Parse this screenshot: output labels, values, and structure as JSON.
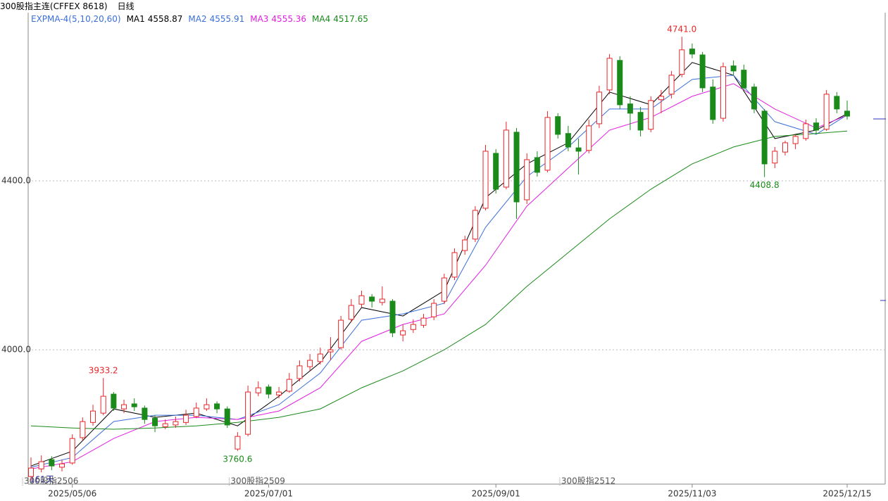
{
  "chart_data": {
    "type": "candlestick",
    "symbol": "300股指主连(CFFEX 8618)",
    "period": "日线",
    "indicator": "EXPMA-4(5,10,20,60)",
    "bar_count": "161天",
    "ylim": [
      3682,
      4798
    ],
    "yticks": [
      {
        "value": 4000,
        "label": "4000.0"
      },
      {
        "value": 4400,
        "label": "4400.0"
      }
    ],
    "grid": true,
    "up_color": "#e8262a",
    "down_color": "#1a8a1a",
    "categories": [
      null,
      null,
      null,
      null,
      "2025/05/06",
      null,
      null,
      null,
      null,
      null,
      null,
      null,
      null,
      null,
      null,
      null,
      null,
      null,
      null,
      null,
      null,
      null,
      null,
      "2025/07/01",
      null,
      null,
      null,
      null,
      null,
      null,
      null,
      null,
      null,
      null,
      null,
      null,
      null,
      null,
      null,
      null,
      null,
      null,
      null,
      null,
      null,
      "2025/09/01",
      null,
      null,
      null,
      null,
      null,
      null,
      null,
      null,
      null,
      null,
      null,
      null,
      null,
      null,
      null,
      null,
      null,
      null,
      "2025/11/03",
      null,
      null,
      null,
      null,
      null,
      null,
      null,
      null,
      null,
      null,
      null,
      null,
      null,
      null,
      "2025/12/15"
    ],
    "contracts": [
      "300股指2506",
      null,
      null,
      null,
      null,
      null,
      null,
      null,
      null,
      null,
      null,
      null,
      null,
      null,
      null,
      null,
      null,
      null,
      null,
      null,
      "300股指2509",
      null,
      null,
      null,
      null,
      null,
      null,
      null,
      null,
      null,
      null,
      null,
      null,
      null,
      null,
      null,
      null,
      null,
      null,
      null,
      null,
      null,
      null,
      null,
      null,
      null,
      null,
      null,
      null,
      null,
      null,
      null,
      "300股指2512",
      null,
      null,
      null,
      null,
      null,
      null,
      null,
      null,
      null,
      null,
      null,
      null,
      null,
      null,
      null,
      null,
      null,
      null,
      null,
      null,
      null,
      null,
      null,
      null,
      null,
      null,
      null
    ],
    "open": [
      3700,
      3718,
      3740,
      3722,
      3732,
      3792,
      3828,
      3850,
      3895,
      3860,
      3872,
      3862,
      3838,
      3818,
      3822,
      3828,
      3842,
      3860,
      3872,
      3860,
      3765,
      3800,
      3898,
      3912,
      3893,
      3902,
      3932,
      3960,
      3972,
      3995,
      4005,
      4072,
      4108,
      4125,
      4112,
      4115,
      4035,
      4048,
      4058,
      4078,
      4115,
      4172,
      4235,
      4262,
      4335,
      4465,
      4385,
      4515,
      4355,
      4455,
      4425,
      4552,
      4512,
      4478,
      4472,
      4535,
      4615,
      4685,
      4582,
      4562,
      4522,
      4592,
      4605,
      4652,
      4712,
      4698,
      4622,
      4548,
      4672,
      4662,
      4622,
      4565,
      4442,
      4468,
      4488,
      4500,
      4537,
      4522,
      4600,
      4565
    ],
    "high": [
      3745,
      3750,
      3748,
      3740,
      3800,
      3840,
      3870,
      3933.2,
      3900,
      3882,
      3885,
      3868,
      3845,
      3835,
      3842,
      3858,
      3875,
      3885,
      3878,
      3866,
      3805,
      3915,
      3925,
      3918,
      3912,
      3945,
      3975,
      3990,
      4005,
      4030,
      4080,
      4120,
      4140,
      4132,
      4150,
      4120,
      4060,
      4072,
      4085,
      4120,
      4180,
      4240,
      4270,
      4340,
      4485,
      4475,
      4540,
      4525,
      4465,
      4470,
      4565,
      4560,
      4530,
      4500,
      4545,
      4625,
      4700,
      4695,
      4600,
      4575,
      4600,
      4615,
      4660,
      4741,
      4725,
      4705,
      4640,
      4680,
      4685,
      4675,
      4630,
      4570,
      4480,
      4495,
      4510,
      4545,
      4548,
      4615,
      4610,
      4590
    ],
    "low": [
      3690,
      3710,
      3715,
      3712,
      3728,
      3785,
      3820,
      3845,
      3855,
      3850,
      3855,
      3825,
      3805,
      3812,
      3815,
      3822,
      3838,
      3855,
      3850,
      3815,
      3760.6,
      3795,
      3890,
      3885,
      3885,
      3898,
      3925,
      3950,
      3965,
      3975,
      4000,
      4065,
      4100,
      4100,
      4105,
      4030,
      4020,
      4040,
      4052,
      4070,
      4108,
      4165,
      4225,
      4255,
      4330,
      4370,
      4380,
      4310,
      4345,
      4410,
      4420,
      4500,
      4470,
      4415,
      4465,
      4525,
      4605,
      4570,
      4520,
      4505,
      4515,
      4560,
      4595,
      4645,
      4690,
      4610,
      4535,
      4540,
      4650,
      4610,
      4560,
      4408.8,
      4430,
      4460,
      4475,
      4495,
      4512,
      4518,
      4560,
      4545
    ],
    "close": [
      3720,
      3735,
      3725,
      3730,
      3790,
      3830,
      3855,
      3890,
      3862,
      3870,
      3865,
      3835,
      3820,
      3825,
      3830,
      3845,
      3862,
      3870,
      3860,
      3822,
      3795,
      3900,
      3910,
      3895,
      3900,
      3930,
      3962,
      3975,
      3990,
      4000,
      4070,
      4105,
      4128,
      4115,
      4120,
      4040,
      4045,
      4060,
      4075,
      4110,
      4170,
      4230,
      4260,
      4330,
      4470,
      4380,
      4520,
      4350,
      4450,
      4420,
      4550,
      4510,
      4480,
      4470,
      4530,
      4610,
      4690,
      4580,
      4560,
      4520,
      4590,
      4600,
      4650,
      4710,
      4700,
      4620,
      4545,
      4670,
      4660,
      4620,
      4570,
      4440,
      4470,
      4490,
      4505,
      4535,
      4520,
      4605,
      4570,
      4553
    ],
    "high_labels": [
      null,
      null,
      null,
      null,
      null,
      null,
      null,
      "3933.2",
      null,
      null,
      null,
      null,
      null,
      null,
      null,
      null,
      null,
      null,
      null,
      null,
      null,
      null,
      null,
      null,
      null,
      null,
      null,
      null,
      null,
      null,
      null,
      null,
      null,
      null,
      null,
      null,
      null,
      null,
      null,
      null,
      null,
      null,
      null,
      null,
      null,
      null,
      null,
      null,
      null,
      null,
      null,
      null,
      null,
      null,
      null,
      null,
      null,
      null,
      null,
      null,
      null,
      null,
      null,
      "4741.0",
      null,
      null,
      null,
      null,
      null,
      null,
      null,
      null,
      null,
      null,
      null,
      null,
      null,
      null,
      null,
      null
    ],
    "low_labels": [
      null,
      null,
      null,
      null,
      null,
      null,
      null,
      null,
      null,
      null,
      null,
      null,
      null,
      null,
      null,
      null,
      null,
      null,
      null,
      null,
      "3760.6",
      null,
      null,
      null,
      null,
      null,
      null,
      null,
      null,
      null,
      null,
      null,
      null,
      null,
      null,
      null,
      null,
      null,
      null,
      null,
      null,
      null,
      null,
      null,
      null,
      null,
      null,
      null,
      null,
      null,
      null,
      null,
      null,
      null,
      null,
      null,
      null,
      null,
      null,
      null,
      null,
      null,
      null,
      null,
      null,
      null,
      null,
      null,
      null,
      null,
      null,
      "4408.8",
      null,
      null,
      null,
      null,
      null,
      null,
      null,
      null
    ],
    "series": [
      {
        "name": "MA1",
        "color": "#000000",
        "x": [
          0,
          4,
          8,
          12,
          16,
          20,
          24,
          28,
          32,
          36,
          40,
          44,
          48,
          52,
          56,
          60,
          64,
          68,
          72,
          76,
          79
        ],
        "values": [
          3725,
          3760,
          3860,
          3840,
          3850,
          3820,
          3890,
          3970,
          4100,
          4080,
          4140,
          4360,
          4440,
          4490,
          4610,
          4580,
          4680,
          4650,
          4500,
          4520,
          4558.87
        ]
      },
      {
        "name": "MA2",
        "color": "#3a6fd8",
        "x": [
          0,
          4,
          8,
          12,
          16,
          20,
          24,
          28,
          32,
          36,
          40,
          44,
          48,
          52,
          56,
          60,
          64,
          68,
          72,
          76,
          79
        ],
        "values": [
          3722,
          3745,
          3830,
          3845,
          3845,
          3835,
          3870,
          3945,
          4070,
          4085,
          4110,
          4290,
          4410,
          4480,
          4570,
          4570,
          4640,
          4650,
          4540,
          4510,
          4555.91
        ]
      },
      {
        "name": "MA3",
        "color": "#e020e0",
        "x": [
          0,
          4,
          8,
          12,
          16,
          20,
          24,
          28,
          32,
          36,
          40,
          44,
          48,
          52,
          56,
          60,
          64,
          68,
          72,
          76,
          79
        ],
        "values": [
          3718,
          3735,
          3790,
          3830,
          3840,
          3835,
          3855,
          3910,
          4020,
          4060,
          4085,
          4200,
          4340,
          4430,
          4520,
          4550,
          4600,
          4630,
          4570,
          4525,
          4555.36
        ]
      },
      {
        "name": "MA4",
        "color": "#1a8a1a",
        "x": [
          0,
          4,
          8,
          12,
          16,
          20,
          24,
          28,
          32,
          36,
          40,
          44,
          48,
          52,
          56,
          60,
          64,
          68,
          72,
          76,
          79
        ],
        "values": [
          3820,
          3815,
          3812,
          3815,
          3820,
          3828,
          3840,
          3860,
          3910,
          3950,
          4000,
          4060,
          4150,
          4230,
          4310,
          4380,
          4440,
          4480,
          4505,
          4512,
          4517.65
        ]
      }
    ]
  }
}
